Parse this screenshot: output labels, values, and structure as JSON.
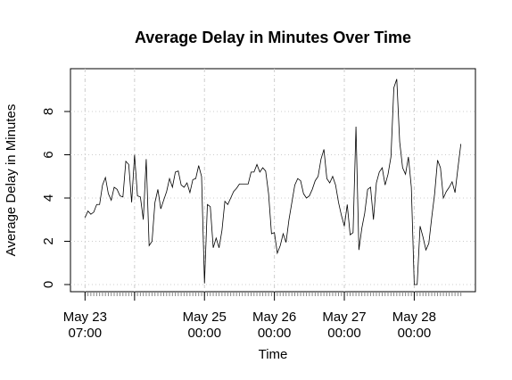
{
  "chart_data": {
    "type": "line",
    "title": "Average Delay in Minutes Over Time",
    "xlabel": "Time",
    "ylabel": "Average Delay in Minutes",
    "x": [
      0,
      1,
      2,
      3,
      4,
      5,
      6,
      7,
      8,
      9,
      10,
      11,
      12,
      13,
      14,
      15,
      16,
      17,
      18,
      19,
      20,
      21,
      22,
      23,
      24,
      25,
      26,
      27,
      28,
      29,
      30,
      31,
      32,
      33,
      34,
      35,
      36,
      37,
      38,
      39,
      40,
      41,
      42,
      43,
      44,
      45,
      46,
      47,
      48,
      49,
      50,
      51,
      52,
      53,
      54,
      55,
      56,
      57,
      58,
      59,
      60,
      61,
      62,
      63,
      64,
      65,
      66,
      67,
      68,
      69,
      70,
      71,
      72,
      73,
      74,
      75,
      76,
      77,
      78,
      79,
      80,
      81,
      82,
      83,
      84,
      85,
      86,
      87,
      88,
      89,
      90,
      91,
      92,
      93,
      94,
      95,
      96,
      97,
      98,
      99,
      100,
      101,
      102,
      103,
      104,
      105,
      106,
      107,
      108,
      109,
      110,
      111,
      112,
      113,
      114,
      115,
      116,
      117,
      118,
      119,
      120,
      121,
      122,
      123,
      124,
      125,
      126,
      127,
      128,
      129
    ],
    "series": [
      {
        "name": "Average Delay",
        "color": "#000000",
        "values": [
          3.1,
          3.4,
          3.25,
          3.35,
          3.7,
          3.7,
          4.6,
          4.95,
          4.2,
          3.9,
          4.5,
          4.4,
          4.1,
          4.05,
          5.7,
          5.55,
          3.8,
          6.0,
          4.1,
          4.05,
          3.0,
          5.8,
          1.8,
          2.0,
          3.8,
          4.4,
          3.5,
          3.9,
          4.3,
          4.9,
          4.5,
          5.2,
          5.25,
          4.6,
          4.5,
          4.7,
          4.25,
          4.85,
          4.9,
          5.5,
          5.0,
          0.05,
          3.7,
          3.6,
          1.7,
          2.15,
          1.7,
          2.5,
          3.85,
          3.7,
          4.0,
          4.3,
          4.45,
          4.65,
          4.65,
          4.65,
          4.65,
          5.2,
          5.2,
          5.55,
          5.2,
          5.4,
          5.25,
          4.2,
          2.35,
          2.4,
          1.45,
          1.8,
          2.35,
          1.95,
          3.0,
          3.8,
          4.6,
          4.9,
          4.8,
          4.2,
          4.0,
          4.1,
          4.4,
          4.8,
          5.0,
          5.8,
          6.25,
          4.9,
          4.7,
          5.0,
          4.6,
          3.8,
          3.2,
          2.7,
          3.7,
          2.3,
          2.4,
          7.3,
          1.6,
          2.6,
          3.3,
          4.4,
          4.5,
          3.0,
          4.7,
          5.2,
          5.4,
          4.6,
          5.1,
          5.9,
          9.1,
          9.5,
          6.6,
          5.4,
          5.1,
          5.9,
          4.5,
          0.0,
          0.0,
          2.7,
          2.2,
          1.6,
          1.9,
          3.1,
          4.2,
          5.75,
          5.4,
          4.0,
          4.3,
          4.5,
          4.75,
          4.25,
          5.4,
          6.5
        ]
      }
    ],
    "xlim": [
      -5,
      134
    ],
    "xticks": [
      {
        "value": 0,
        "label": "May 23\n07:00"
      },
      {
        "value": 17,
        "label": null
      },
      {
        "value": 41,
        "label": "May 25\n00:00"
      },
      {
        "value": 65,
        "label": "May 26\n00:00"
      },
      {
        "value": 89,
        "label": "May 27\n00:00"
      },
      {
        "value": 113,
        "label": "May 28\n00:00"
      }
    ],
    "ylim": [
      -0.33,
      9.98
    ],
    "yticks": [
      0,
      2,
      4,
      6,
      8
    ],
    "grid": true
  }
}
